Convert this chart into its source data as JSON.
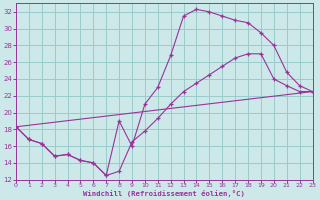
{
  "bg_color": "#cce8e8",
  "line_color": "#993399",
  "grid_color": "#99cccc",
  "xlabel": "Windchill (Refroidissement éolien,°C)",
  "ylim": [
    12,
    33
  ],
  "xlim": [
    0,
    23
  ],
  "yticks": [
    12,
    14,
    16,
    18,
    20,
    22,
    24,
    26,
    28,
    30,
    32
  ],
  "xticks": [
    0,
    1,
    2,
    3,
    4,
    5,
    6,
    7,
    8,
    9,
    10,
    11,
    12,
    13,
    14,
    15,
    16,
    17,
    18,
    19,
    20,
    21,
    22,
    23
  ],
  "series1_x": [
    0,
    1,
    2,
    3,
    4,
    5,
    6,
    7,
    8,
    9,
    10,
    11,
    12,
    13,
    14,
    15,
    16,
    17,
    18,
    19,
    20,
    21,
    22,
    23
  ],
  "series1_y": [
    18.3,
    16.8,
    16.3,
    14.8,
    15.0,
    14.3,
    14.0,
    12.5,
    19.0,
    16.0,
    21.0,
    23.0,
    26.8,
    31.5,
    32.3,
    32.0,
    31.5,
    31.0,
    30.7,
    29.5,
    28.0,
    24.8,
    23.2,
    22.5
  ],
  "series2_x": [
    0,
    1,
    2,
    3,
    4,
    5,
    6,
    7,
    8,
    9,
    10,
    11,
    12,
    13,
    14,
    15,
    16,
    17,
    18,
    19,
    20,
    21,
    22,
    23
  ],
  "series2_y": [
    18.3,
    16.8,
    16.3,
    14.8,
    15.0,
    14.3,
    14.0,
    12.5,
    13.0,
    16.5,
    17.8,
    19.3,
    21.0,
    22.5,
    23.5,
    24.5,
    25.5,
    26.5,
    27.0,
    27.0,
    24.0,
    23.2,
    22.5,
    22.5
  ],
  "series3_x": [
    0,
    23
  ],
  "series3_y": [
    18.3,
    22.5
  ]
}
